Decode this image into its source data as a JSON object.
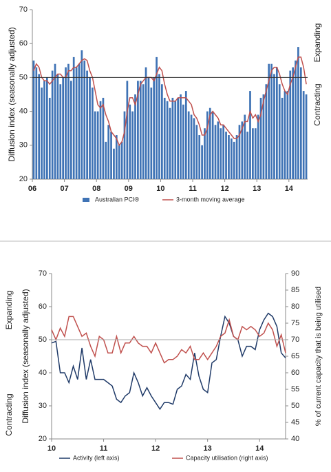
{
  "chart_data": [
    {
      "type": "bar",
      "y_label": "Diffusion index (seasonally adjusted)",
      "annotations": [
        "Expanding",
        "Contracting"
      ],
      "reference_line": 50,
      "ylim": [
        20,
        70
      ],
      "yticks": [
        20,
        30,
        40,
        50,
        60,
        70
      ],
      "categories": [
        "06",
        null,
        null,
        null,
        null,
        null,
        null,
        null,
        null,
        null,
        null,
        null,
        "07",
        null,
        null,
        null,
        null,
        null,
        null,
        null,
        null,
        null,
        null,
        null,
        "08",
        null,
        null,
        null,
        null,
        null,
        null,
        null,
        null,
        null,
        null,
        null,
        "09",
        null,
        null,
        null,
        null,
        null,
        null,
        null,
        null,
        null,
        null,
        null,
        "10",
        null,
        null,
        null,
        null,
        null,
        null,
        null,
        null,
        null,
        null,
        null,
        "11",
        null,
        null,
        null,
        null,
        null,
        null,
        null,
        null,
        null,
        null,
        null,
        "12",
        null,
        null,
        null,
        null,
        null,
        null,
        null,
        null,
        null,
        null,
        null,
        "13",
        null,
        null,
        null,
        null,
        null,
        null,
        null,
        null,
        null,
        null,
        null,
        "14",
        null,
        null,
        null,
        null,
        null,
        null
      ],
      "series": [
        {
          "name": "Australian PCI®",
          "type": "bar",
          "color": "#3f73b5",
          "values": [
            55,
            53,
            51,
            47,
            49,
            50,
            44,
            52,
            54,
            51,
            48,
            50,
            53,
            54,
            49,
            56,
            53,
            54,
            58,
            55,
            52,
            50,
            47,
            40,
            40,
            43,
            44,
            31,
            36,
            34,
            29,
            33,
            30,
            31,
            40,
            49,
            42,
            40,
            45,
            49,
            49,
            48,
            53,
            50,
            47,
            50,
            56,
            51,
            48,
            44,
            43,
            41,
            44,
            43,
            44,
            45,
            42,
            46,
            40,
            39,
            38,
            36,
            33,
            30,
            35,
            40,
            41,
            40,
            36,
            37,
            35,
            36,
            34,
            33,
            32,
            31,
            33,
            36,
            37,
            39,
            34,
            46,
            35,
            35,
            39,
            44,
            45,
            48,
            54,
            54,
            51,
            53,
            48,
            44,
            46,
            46,
            52,
            53,
            55,
            59,
            53,
            46,
            45
          ]
        },
        {
          "name": "3-month moving average",
          "type": "line",
          "color": "#c0504d",
          "values": [
            52,
            54,
            53,
            50,
            49,
            49,
            48,
            49,
            50,
            51,
            51,
            50,
            50,
            52,
            52,
            53,
            53,
            54,
            55,
            55.5,
            55,
            52,
            50,
            46,
            42,
            41,
            42,
            39,
            37,
            34,
            33,
            32,
            30,
            31,
            34,
            40,
            44,
            44,
            42,
            45,
            48,
            49,
            50,
            50,
            50,
            49,
            51,
            53,
            52,
            48,
            45,
            43,
            43,
            43,
            44,
            44,
            44,
            44,
            43,
            42,
            39,
            38,
            36,
            33,
            33,
            35,
            39,
            40,
            39,
            38,
            36,
            36,
            35,
            34,
            33,
            32,
            32,
            33,
            35,
            37,
            37,
            40,
            38,
            39,
            37,
            39,
            43,
            46,
            49,
            52,
            53,
            53,
            51,
            48,
            46,
            45,
            48,
            50,
            53,
            56,
            56,
            53,
            48
          ]
        }
      ]
    },
    {
      "type": "line",
      "y_label": "Diffusion index (seasonally adjusted)",
      "y2_label": "% of current capacity that is being utilised",
      "annotations": [
        "Expanding",
        "Contracting"
      ],
      "reference_line": 50,
      "ylim": [
        20,
        70
      ],
      "yticks": [
        20,
        30,
        40,
        50,
        60,
        70
      ],
      "y2lim": [
        40,
        90
      ],
      "y2ticks": [
        40,
        45,
        50,
        55,
        60,
        65,
        70,
        75,
        80,
        85,
        90
      ],
      "categories": [
        "10",
        null,
        null,
        null,
        null,
        null,
        null,
        null,
        null,
        null,
        null,
        null,
        "11",
        null,
        null,
        null,
        null,
        null,
        null,
        null,
        null,
        null,
        null,
        null,
        "12",
        null,
        null,
        null,
        null,
        null,
        null,
        null,
        null,
        null,
        null,
        null,
        "13",
        null,
        null,
        null,
        null,
        null,
        null,
        null,
        null,
        null,
        null,
        null,
        "14",
        null,
        null,
        null,
        null,
        null,
        null
      ],
      "series": [
        {
          "name": "Activity (left axis)",
          "color": "#1f3a68",
          "values": [
            49,
            49.5,
            40,
            40,
            37,
            42,
            38,
            47.5,
            38,
            44,
            38,
            38,
            38,
            37,
            36,
            32,
            31,
            33,
            34,
            40,
            37,
            33,
            35.5,
            33,
            31,
            29,
            31,
            31,
            30.5,
            35,
            36,
            39.5,
            38,
            46,
            39,
            35,
            34,
            43,
            44,
            51,
            57,
            55,
            51,
            50,
            45,
            48,
            48,
            47,
            53,
            56,
            58,
            57,
            54,
            46,
            44.5
          ]
        },
        {
          "name": "Capacity utilisation (right axis)",
          "color": "#c0504d",
          "axis": "y2",
          "values": [
            73,
            70,
            73.5,
            71,
            77,
            77,
            74,
            71,
            72,
            68,
            65,
            71,
            70,
            66,
            66,
            71,
            66,
            69,
            69,
            71,
            69,
            68,
            68,
            66,
            69,
            66,
            63,
            64,
            64,
            65,
            67,
            66,
            68,
            64,
            64,
            66,
            64,
            66,
            68,
            71,
            72,
            76,
            71,
            70,
            74,
            73,
            74,
            73,
            71,
            72,
            75,
            73,
            68,
            71.5,
            66
          ]
        }
      ]
    }
  ]
}
